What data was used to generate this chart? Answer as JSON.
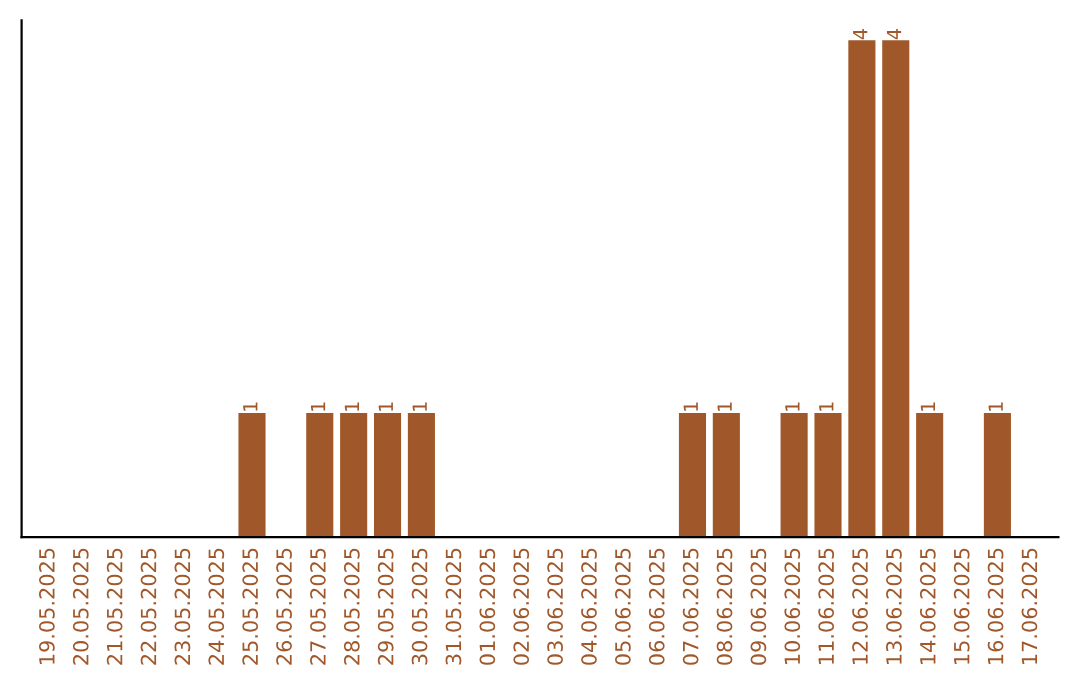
{
  "chart_data": {
    "type": "bar",
    "categories": [
      "19.05.2025",
      "20.05.2025",
      "21.05.2025",
      "22.05.2025",
      "23.05.2025",
      "24.05.2025",
      "25.05.2025",
      "26.05.2025",
      "27.05.2025",
      "28.05.2025",
      "29.05.2025",
      "30.05.2025",
      "31.05.2025",
      "01.06.2025",
      "02.06.2025",
      "03.06.2025",
      "04.06.2025",
      "05.06.2025",
      "06.06.2025",
      "07.06.2025",
      "08.06.2025",
      "09.06.2025",
      "10.06.2025",
      "11.06.2025",
      "12.06.2025",
      "13.06.2025",
      "14.06.2025",
      "15.06.2025",
      "16.06.2025",
      "17.06.2025"
    ],
    "values": [
      0,
      0,
      0,
      0,
      0,
      0,
      1,
      0,
      1,
      1,
      1,
      1,
      0,
      0,
      0,
      0,
      0,
      0,
      0,
      1,
      1,
      0,
      1,
      1,
      4,
      4,
      1,
      0,
      1,
      0
    ],
    "value_labels": [
      null,
      null,
      null,
      null,
      null,
      null,
      "1",
      null,
      "1",
      "1",
      "1",
      "1",
      null,
      null,
      null,
      null,
      null,
      null,
      null,
      "1",
      "1",
      null,
      "1",
      "1",
      "4",
      "4",
      "1",
      null,
      "1",
      null
    ],
    "color": "#a0582a",
    "grid": false,
    "legend": false
  }
}
